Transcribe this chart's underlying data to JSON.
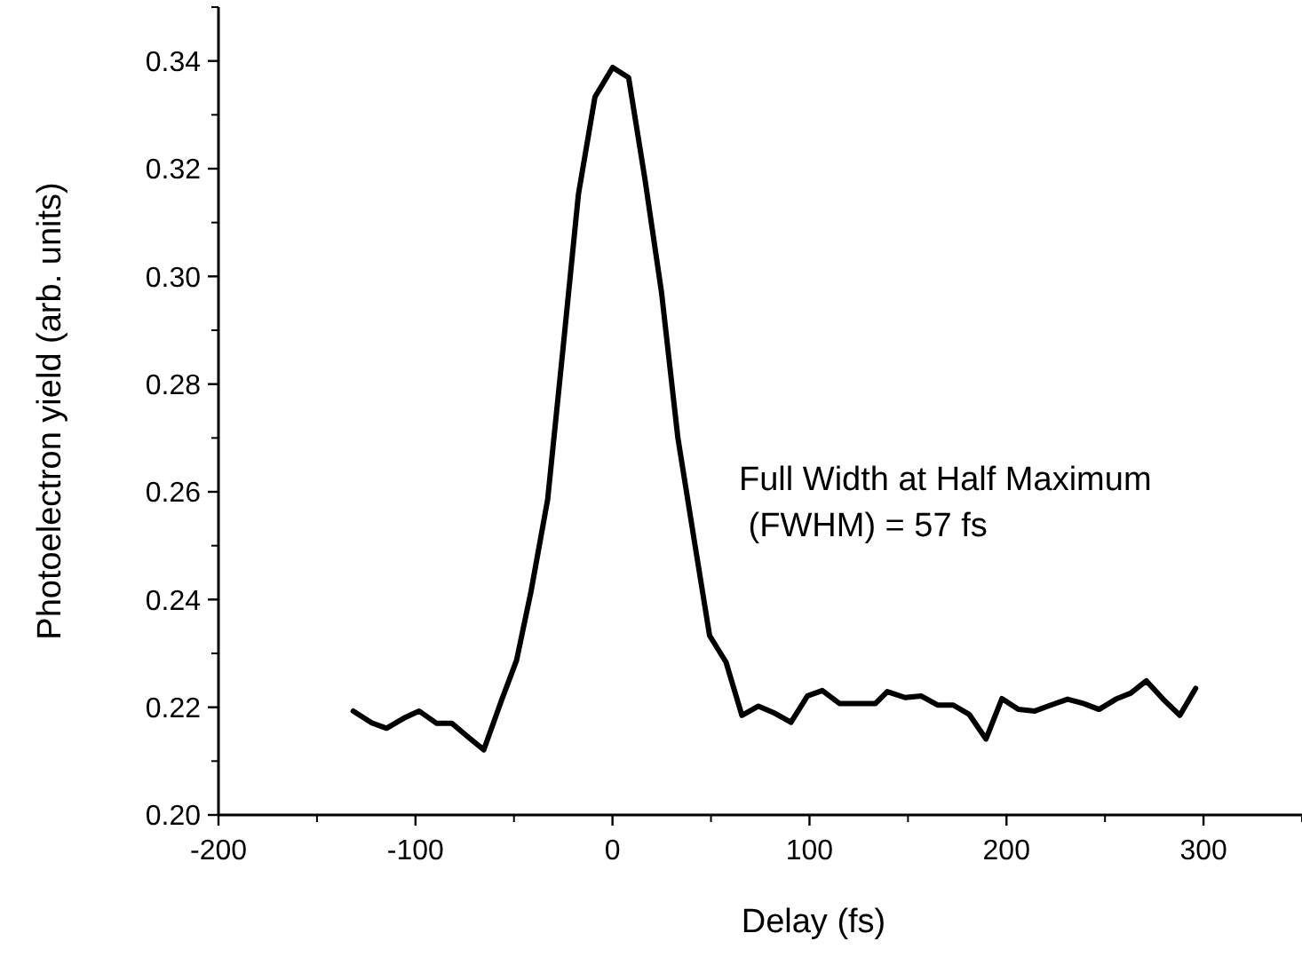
{
  "chart_data": {
    "type": "line",
    "xlabel": "Delay (fs)",
    "ylabel": "Photoelectron yield (arb. units)",
    "xlim": [
      -200,
      350
    ],
    "ylim": [
      0.2,
      0.35
    ],
    "xticks": [
      -200,
      -100,
      0,
      100,
      200,
      300
    ],
    "yticks": [
      {
        "value": 0.2,
        "label": "0.20"
      },
      0.22,
      0.24,
      0.26,
      0.28,
      {
        "value": 0.3,
        "label": "0.30"
      },
      0.32,
      0.34
    ],
    "grid": false,
    "marker": "none",
    "line_style": "solid",
    "annotations": [
      "Full Width at Half Maximum\n (FWHM) = 57 fs"
    ],
    "series": [
      {
        "color": "#000000",
        "x": [
          -131.6,
          -122.2,
          -114.7,
          -105.8,
          -98.2,
          -89.2,
          -81.5,
          -73.4,
          -65.3,
          -56.3,
          -48.7,
          -41.3,
          -32.9,
          -25,
          -17.3,
          -8.9,
          0.1,
          8.2,
          16.5,
          24.9,
          33.2,
          41.5,
          49.3,
          57.6,
          65.7,
          74.1,
          81.7,
          90.6,
          99,
          106.5,
          115.2,
          124,
          133.5,
          139.5,
          148.5,
          156.6,
          165,
          173,
          181,
          189.6,
          197.7,
          206,
          214.4,
          222.5,
          231,
          239,
          247,
          255.5,
          263,
          271,
          279.5,
          288,
          296
        ],
        "values": [
          0.2193,
          0.2171,
          0.2161,
          0.218,
          0.2193,
          0.217,
          0.217,
          0.2145,
          0.2121,
          0.2213,
          0.2287,
          0.2416,
          0.2586,
          0.287,
          0.3152,
          0.3333,
          0.3388,
          0.3369,
          0.318,
          0.297,
          0.27,
          0.251,
          0.2333,
          0.2284,
          0.2185,
          0.2202,
          0.219,
          0.2172,
          0.2221,
          0.2231,
          0.2207,
          0.2207,
          0.2207,
          0.2229,
          0.2218,
          0.2221,
          0.2204,
          0.2204,
          0.2187,
          0.2141,
          0.2216,
          0.2196,
          0.2193,
          0.2204,
          0.2215,
          0.2207,
          0.2196,
          0.2215,
          0.2226,
          0.2249,
          0.2215,
          0.2185,
          0.2235
        ]
      }
    ]
  }
}
